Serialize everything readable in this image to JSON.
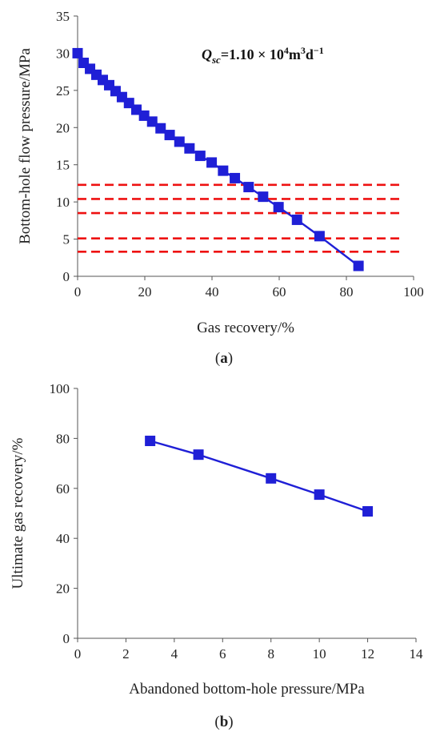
{
  "chart_data": [
    {
      "type": "line",
      "panel_label": "a",
      "xlabel": "Gas recovery/%",
      "ylabel": "Bottom-hole flow pressure/MPa",
      "xlim": [
        0,
        100
      ],
      "ylim": [
        0,
        35
      ],
      "xticks": [
        0,
        20,
        40,
        60,
        80,
        100
      ],
      "yticks": [
        0,
        5,
        10,
        15,
        20,
        25,
        30,
        35
      ],
      "annotation": {
        "q": "Q",
        "sub": "sc",
        "eq": "=1.10 × 10",
        "exp4": "4",
        "mid": "m",
        "exp3": "3",
        "d": "d",
        "expm1": "−1"
      },
      "series": [
        {
          "color": "#1f1fd6",
          "x": [
            0,
            1.8,
            3.7,
            5.6,
            7.5,
            9.4,
            11.3,
            13.2,
            15.3,
            17.5,
            19.8,
            22.2,
            24.7,
            27.4,
            30.3,
            33.3,
            36.5,
            39.9,
            43.3,
            46.8,
            50.9,
            55.2,
            59.8,
            65.3,
            72.0,
            83.6
          ],
          "y": [
            30.0,
            28.7,
            27.9,
            27.1,
            26.4,
            25.7,
            24.9,
            24.1,
            23.3,
            22.4,
            21.6,
            20.8,
            19.9,
            19.0,
            18.1,
            17.2,
            16.2,
            15.3,
            14.2,
            13.2,
            12.0,
            10.7,
            9.3,
            7.6,
            5.4,
            1.4
          ]
        }
      ],
      "reference_lines": {
        "color": "#ee1111",
        "y": [
          12.3,
          10.4,
          8.5,
          5.1,
          3.3
        ]
      }
    },
    {
      "type": "line",
      "panel_label": "b",
      "xlabel": "Abandoned bottom-hole pressure/MPa",
      "ylabel": "Ultimate gas recovery/%",
      "xlim": [
        0,
        14
      ],
      "ylim": [
        0,
        100
      ],
      "xticks": [
        0,
        2,
        4,
        6,
        8,
        10,
        12,
        14
      ],
      "yticks": [
        0,
        20,
        40,
        60,
        80,
        100
      ],
      "series": [
        {
          "color": "#1f1fd6",
          "x": [
            3,
            5,
            8,
            10,
            12
          ],
          "y": [
            79.0,
            73.5,
            64.0,
            57.5,
            50.8
          ]
        }
      ]
    }
  ]
}
